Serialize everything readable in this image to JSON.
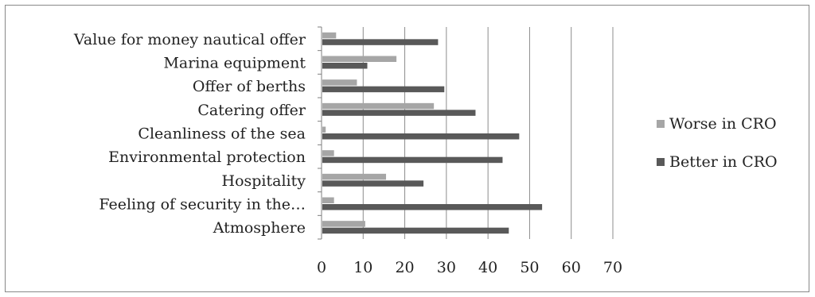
{
  "chart_data": {
    "type": "bar",
    "orientation": "horizontal",
    "title": "",
    "xlabel": "",
    "ylabel": "",
    "xlim": [
      0,
      70
    ],
    "xticks": [
      0,
      10,
      20,
      30,
      40,
      50,
      60,
      70
    ],
    "grid": "vertical",
    "legend_position": "right",
    "categories": [
      "Atmosphere",
      "Feeling of security in the…",
      "Hospitality",
      "Environmental protection",
      "Cleanliness of the sea",
      "Catering offer",
      "Offer of berths",
      "Marina equipment",
      "Value for money nautical offer"
    ],
    "series": [
      {
        "name": "Better in CRO",
        "color": "#595959",
        "values": [
          45,
          53,
          24.5,
          43.5,
          47.5,
          37,
          29.5,
          11,
          28
        ]
      },
      {
        "name": "Worse in CRO",
        "color": "#a6a6a6",
        "values": [
          10.5,
          3,
          15.5,
          3,
          1,
          27,
          8.5,
          18,
          3.5
        ]
      }
    ],
    "legend": [
      "Worse in CRO",
      "Better in CRO"
    ]
  }
}
